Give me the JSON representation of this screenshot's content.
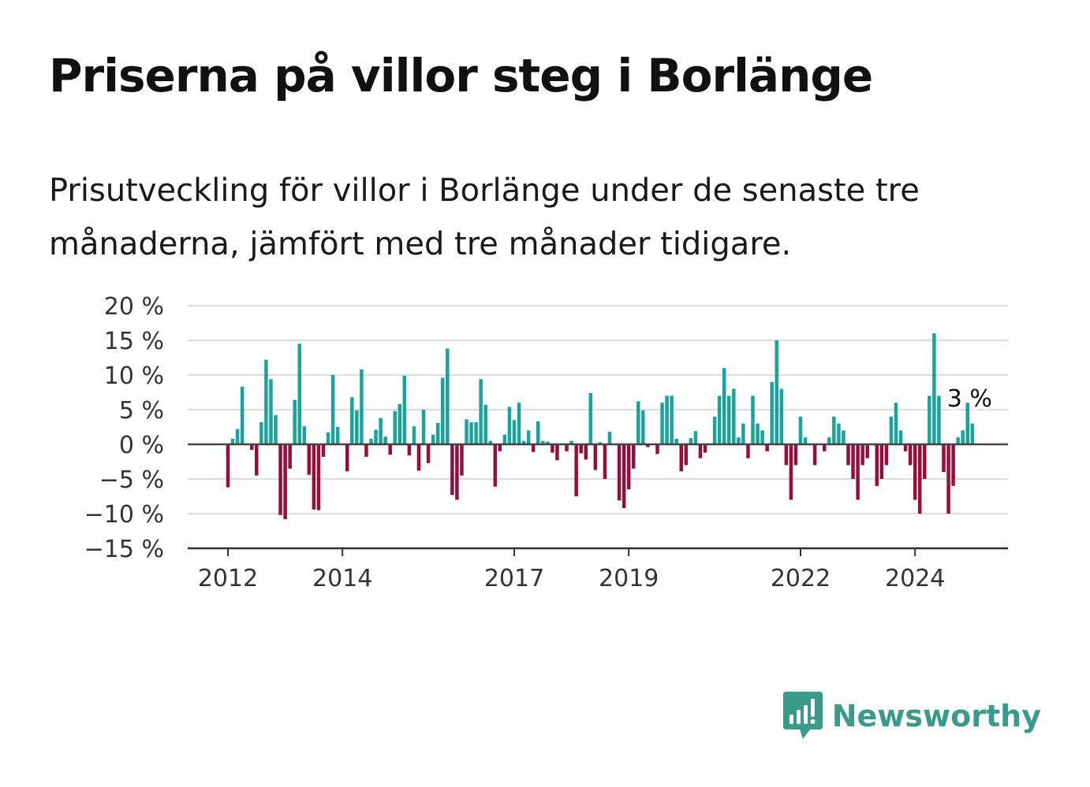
{
  "title": "Priserna på villor steg i Borlänge",
  "subtitle": "Prisutveckling för villor i Borlänge under de senaste tre månaderna, jämfört med tre månader tidigare.",
  "brand": {
    "name": "Newsworthy",
    "icon": "chart-bubble-icon",
    "color": "#3a9b8a"
  },
  "colors": {
    "positive": "#1aa39a",
    "negative": "#960f3c",
    "zero_line": "#444444",
    "grid": "#dddddd"
  },
  "chart_data": {
    "type": "bar",
    "title": "Priserna på villor steg i Borlänge",
    "xlabel": "",
    "ylabel": "",
    "ylim": [
      -15,
      20
    ],
    "y_ticks": [
      20,
      15,
      10,
      5,
      0,
      -5,
      -10,
      -15
    ],
    "y_tick_labels": [
      "20 %",
      "15 %",
      "10 %",
      "5 %",
      "0 %",
      "−5 %",
      "−10 %",
      "−15 %"
    ],
    "x_ticks": [
      "2012",
      "2014",
      "2017",
      "2019",
      "2022",
      "2024"
    ],
    "grid": true,
    "start": "2012-01",
    "frequency": "monthly",
    "values": [
      -6.2,
      0.8,
      2.2,
      8.3,
      0,
      -0.8,
      -4.5,
      3.2,
      12.2,
      9.4,
      4.2,
      -10.2,
      -10.8,
      -3.5,
      6.4,
      14.5,
      2.6,
      -4.4,
      -9.4,
      -9.5,
      -1.8,
      1.7,
      10.0,
      2.5,
      0,
      -3.9,
      6.8,
      4.9,
      10.8,
      -1.8,
      0.8,
      2.1,
      3.8,
      1.1,
      -1.5,
      4.8,
      5.8,
      9.9,
      -1.6,
      2.6,
      -3.8,
      5.0,
      -2.7,
      1.4,
      3.1,
      9.6,
      13.8,
      -7.3,
      -8.0,
      -4.5,
      3.6,
      3.2,
      3.2,
      9.4,
      5.7,
      0.5,
      -6.1,
      -1.0,
      1.4,
      5.4,
      3.5,
      6.0,
      0.5,
      2.0,
      -1.1,
      3.3,
      0.5,
      0.4,
      -1.2,
      -2.3,
      0.1,
      -1.0,
      0.5,
      -7.5,
      -1.3,
      -2.2,
      7.4,
      -3.7,
      0.3,
      -5.0,
      1.8,
      0,
      -8.1,
      -9.2,
      -6.5,
      -3.5,
      6.2,
      4.9,
      -0.4,
      0.1,
      -1.4,
      6.0,
      7.0,
      7.0,
      0.8,
      -3.9,
      -3.0,
      0.9,
      1.9,
      -2.0,
      -1.2,
      0,
      4.0,
      7.0,
      11.0,
      7.0,
      8.0,
      1.0,
      3.0,
      -2.0,
      7.0,
      3.0,
      2.0,
      -1.0,
      9.0,
      15.0,
      8.0,
      -3.0,
      -8.0,
      -3.0,
      4.0,
      1.0,
      0,
      -3.0,
      0,
      -1.0,
      1.0,
      4.0,
      3.0,
      2.0,
      -3.0,
      -5.0,
      -8.0,
      -3.0,
      -2.0,
      0,
      -6.0,
      -5.0,
      -3.0,
      4.0,
      6.0,
      2.0,
      -1.0,
      -3.0,
      -8.0,
      -10.0,
      -5.0,
      7.0,
      16.0,
      7.0,
      -4.0,
      -10.0,
      -6.0,
      1.0,
      2.0,
      6.0,
      3.0
    ],
    "annotations": [
      {
        "label": "3 %",
        "value": 3
      }
    ]
  }
}
